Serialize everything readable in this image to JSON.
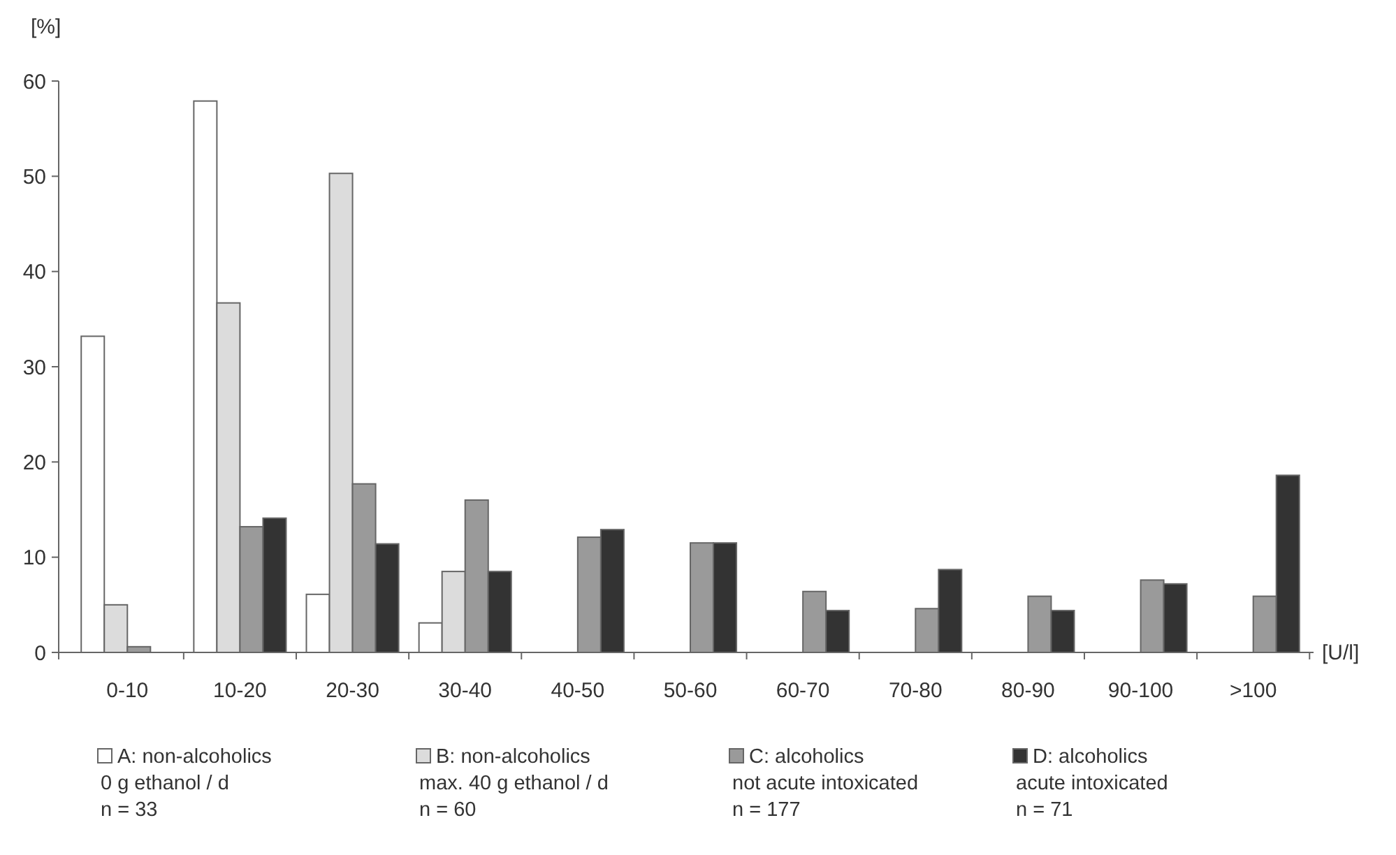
{
  "chart_data": {
    "type": "bar",
    "ylabel": "[%]",
    "xlabel": "[U/l]",
    "categories": [
      "0-10",
      "10-20",
      "20-30",
      "30-40",
      "40-50",
      "50-60",
      "60-70",
      "70-80",
      "80-90",
      "90-100",
      ">100"
    ],
    "series": [
      {
        "name": "A: non-alcoholics\n0 g ethanol / d\nn = 33",
        "color": "#ffffff",
        "values": [
          33.2,
          57.9,
          6.1,
          3.1,
          null,
          null,
          null,
          null,
          null,
          null,
          null
        ]
      },
      {
        "name": "B: non-alcoholics\nmax. 40 g ethanol / d\nn = 60",
        "color": "#dcdcdc",
        "values": [
          5.0,
          36.7,
          50.3,
          8.5,
          null,
          null,
          null,
          null,
          null,
          null,
          null
        ]
      },
      {
        "name": "C: alcoholics\nnot acute intoxicated\nn = 177",
        "color": "#9a9a9a",
        "values": [
          0.6,
          13.2,
          17.7,
          16.0,
          12.1,
          11.5,
          6.4,
          4.6,
          5.9,
          7.6,
          5.9
        ]
      },
      {
        "name": "D: alcoholics\nacute intoxicated\nn = 71",
        "color": "#333333",
        "values": [
          null,
          14.1,
          11.4,
          8.5,
          12.9,
          11.5,
          4.4,
          8.7,
          4.4,
          7.2,
          18.6
        ]
      }
    ],
    "ylim": [
      0,
      60
    ],
    "yticks": [
      0,
      10,
      20,
      30,
      40,
      50,
      60
    ],
    "grid": false,
    "legend": "bottom"
  }
}
